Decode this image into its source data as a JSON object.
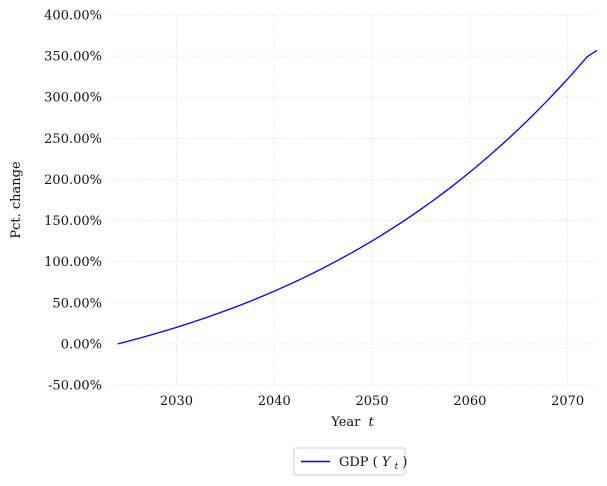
{
  "chart_data": {
    "type": "line",
    "title": "",
    "xlabel": "Year",
    "xlabel_var": "t",
    "ylabel": "Pct. change",
    "xlim": [
      2023,
      2073
    ],
    "ylim": [
      -50,
      400
    ],
    "xticks": [
      2030,
      2040,
      2050,
      2060,
      2070
    ],
    "yticks": [
      -50,
      0,
      50,
      100,
      150,
      200,
      250,
      300,
      350,
      400
    ],
    "ytick_labels": [
      "-50.00%",
      "0.00%",
      "50.00%",
      "100.00%",
      "150.00%",
      "200.00%",
      "250.00%",
      "300.00%",
      "350.00%",
      "400.00%"
    ],
    "grid": true,
    "legend_position": "bottom-center",
    "series": [
      {
        "name_text": "GDP (",
        "name_var": "Y",
        "name_sub": "t",
        "name_close": ")",
        "color": "#0000ff",
        "x": [
          2024,
          2025,
          2026,
          2027,
          2028,
          2029,
          2030,
          2031,
          2032,
          2033,
          2034,
          2035,
          2036,
          2037,
          2038,
          2039,
          2040,
          2041,
          2042,
          2043,
          2044,
          2045,
          2046,
          2047,
          2048,
          2049,
          2050,
          2051,
          2052,
          2053,
          2054,
          2055,
          2056,
          2057,
          2058,
          2059,
          2060,
          2061,
          2062,
          2063,
          2064,
          2065,
          2066,
          2067,
          2068,
          2069,
          2070,
          2071,
          2072,
          2073
        ],
        "values": [
          0.0,
          3.1,
          6.3,
          9.6,
          13.0,
          16.5,
          20.1,
          23.9,
          27.8,
          31.8,
          36.0,
          40.3,
          44.7,
          49.3,
          54.1,
          59.0,
          64.1,
          69.4,
          74.8,
          80.4,
          86.2,
          92.2,
          98.4,
          104.8,
          111.4,
          118.2,
          125.2,
          132.4,
          139.9,
          147.6,
          155.6,
          163.8,
          172.3,
          181.0,
          190.0,
          199.3,
          208.9,
          218.8,
          229.0,
          239.5,
          250.3,
          261.4,
          272.9,
          284.7,
          296.9,
          309.4,
          322.3,
          335.6,
          349.3,
          357.0
        ]
      }
    ]
  }
}
